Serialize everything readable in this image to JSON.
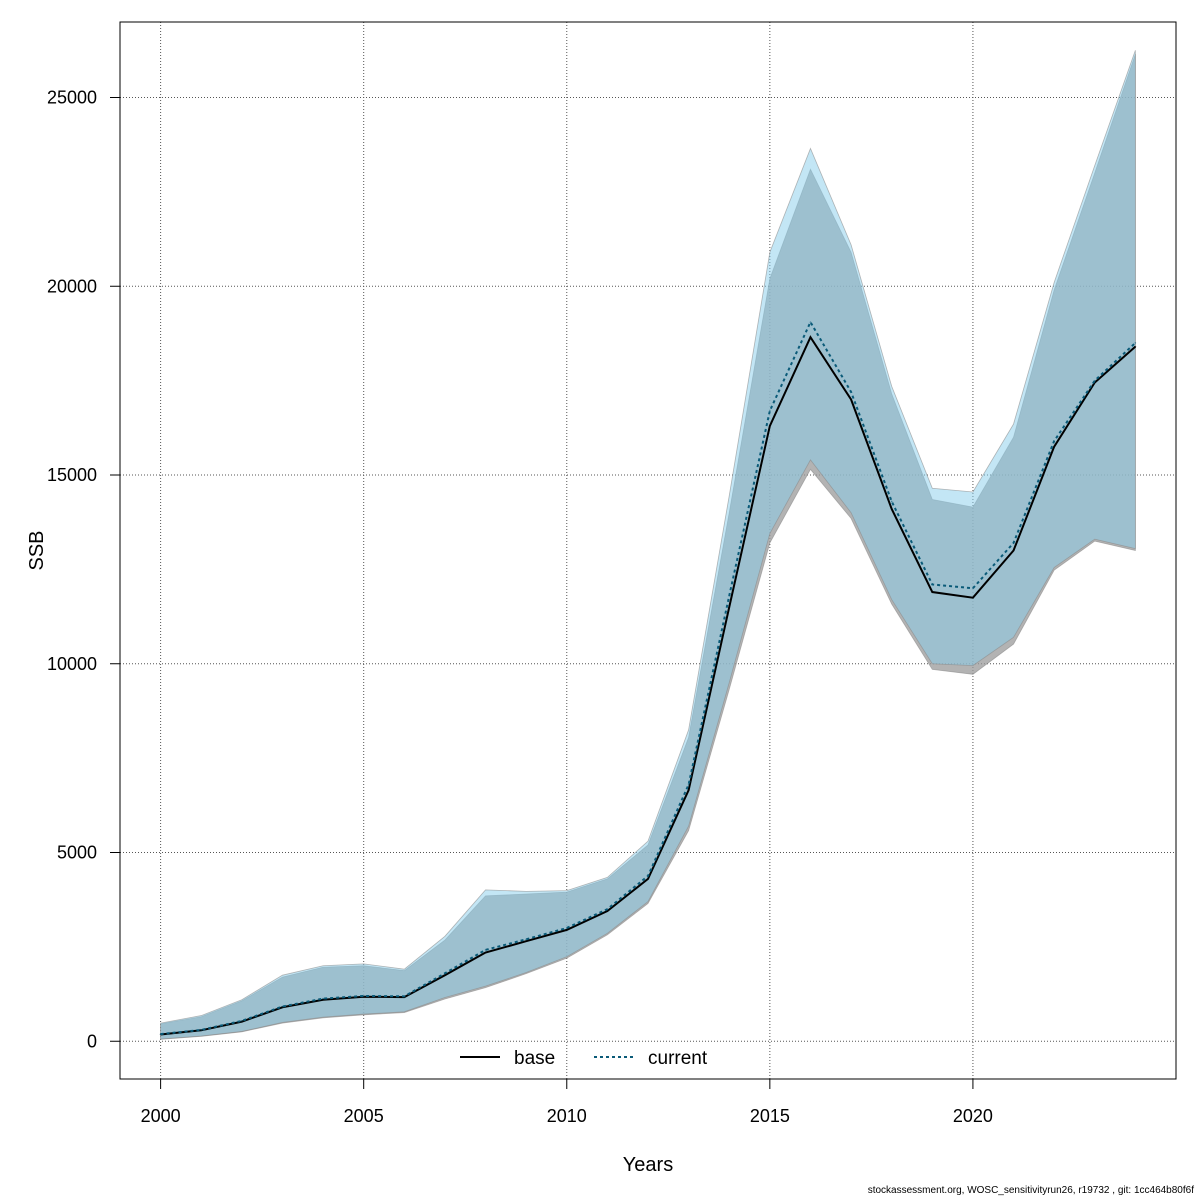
{
  "chart_data": {
    "type": "line",
    "xlabel": "Years",
    "ylabel": "SSB",
    "xlim": [
      1999,
      2025
    ],
    "ylim": [
      -1000,
      27000
    ],
    "xticks": [
      2000,
      2005,
      2010,
      2015,
      2020
    ],
    "yticks": [
      0,
      5000,
      10000,
      15000,
      20000,
      25000
    ],
    "grid": true,
    "legend_position": "bottom-center",
    "x": [
      2000,
      2001,
      2002,
      2003,
      2004,
      2005,
      2006,
      2007,
      2008,
      2009,
      2010,
      2011,
      2012,
      2013,
      2014,
      2015,
      2016,
      2017,
      2018,
      2019,
      2020,
      2021,
      2022,
      2023,
      2024
    ],
    "series": [
      {
        "name": "base",
        "line_style": "solid",
        "line_color": "#000000",
        "band_color": "#9a9a9a",
        "values": [
          180,
          290,
          520,
          900,
          1100,
          1180,
          1170,
          1750,
          2350,
          2650,
          2950,
          3450,
          4300,
          6650,
          11500,
          16300,
          18650,
          17000,
          14100,
          11900,
          11750,
          13000,
          15750,
          17450,
          18400
        ],
        "lower": [
          50,
          130,
          250,
          480,
          620,
          700,
          760,
          1120,
          1420,
          1790,
          2200,
          2820,
          3650,
          5580,
          9320,
          13200,
          15150,
          13850,
          11580,
          9850,
          9720,
          10520,
          12480,
          13250,
          13000
        ],
        "upper": [
          460,
          650,
          1070,
          1700,
          1960,
          2000,
          1870,
          2680,
          3850,
          3900,
          3950,
          4300,
          5200,
          8050,
          14000,
          20200,
          23100,
          20900,
          17150,
          14350,
          14150,
          16000,
          19900,
          23000,
          26150
        ]
      },
      {
        "name": "current",
        "line_style": "dotted",
        "line_color": "#0a5a78",
        "band_color": "#87ceeb",
        "values": [
          190,
          300,
          540,
          920,
          1130,
          1200,
          1190,
          1800,
          2420,
          2700,
          3000,
          3500,
          4380,
          6800,
          11800,
          16700,
          19050,
          17200,
          14300,
          12100,
          12000,
          13200,
          15900,
          17500,
          18500
        ],
        "lower": [
          60,
          140,
          260,
          500,
          640,
          720,
          780,
          1160,
          1460,
          1820,
          2240,
          2860,
          3700,
          5700,
          9500,
          13450,
          15400,
          14000,
          11700,
          10000,
          9950,
          10700,
          12550,
          13300,
          13050
        ],
        "upper": [
          480,
          680,
          1100,
          1750,
          2000,
          2050,
          1910,
          2780,
          4010,
          3970,
          3990,
          4340,
          5300,
          8250,
          14450,
          20900,
          23650,
          21100,
          17350,
          14650,
          14550,
          16350,
          20100,
          23200,
          26250
        ]
      }
    ]
  },
  "footer_text": "stockassessment.org, WOSC_sensitivityrun26, r19732 , git: 1cc464b80f6f"
}
